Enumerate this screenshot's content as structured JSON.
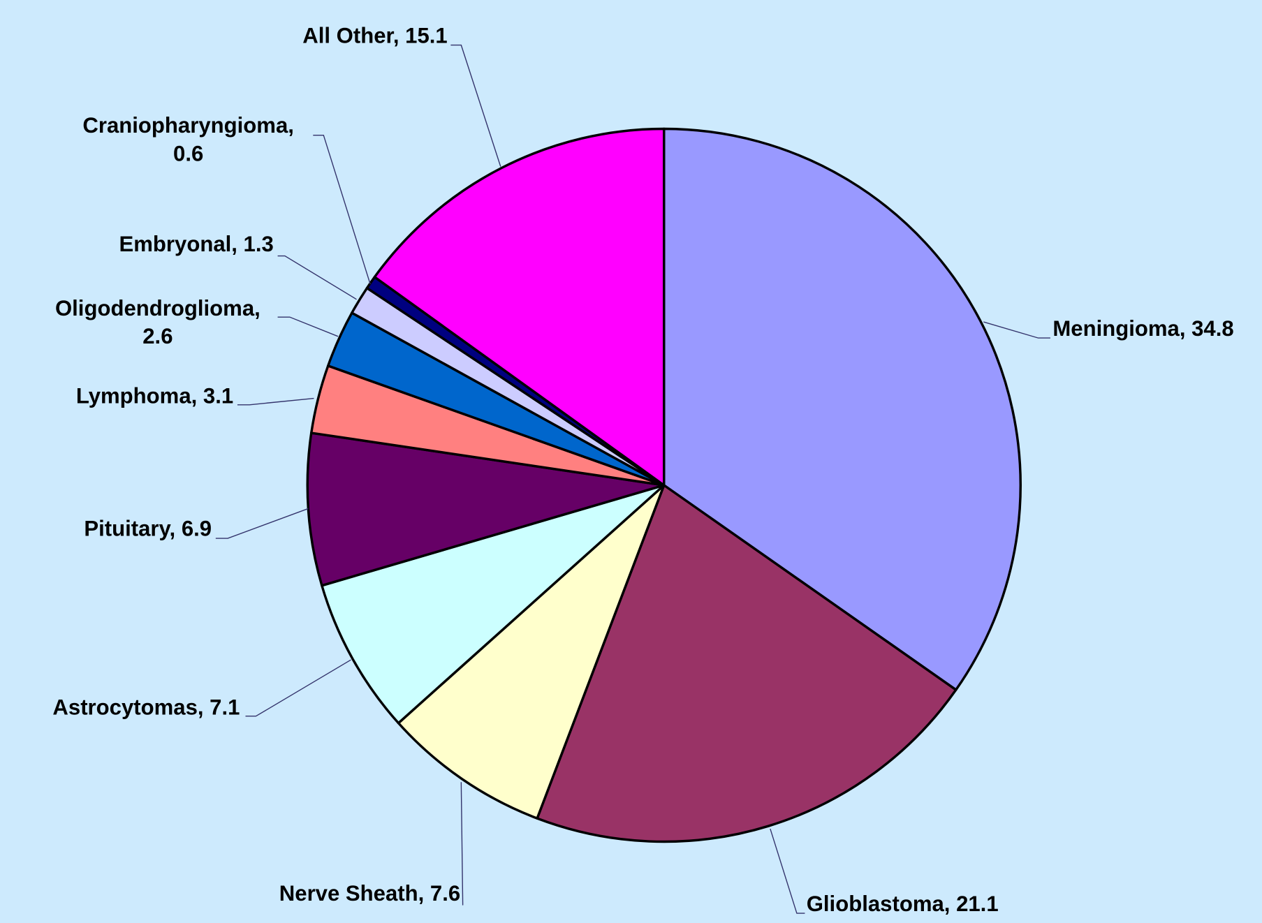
{
  "chart_data": {
    "type": "pie",
    "values": [
      34.8,
      21.1,
      7.6,
      7.1,
      6.9,
      3.1,
      2.6,
      1.3,
      0.6,
      15.1
    ],
    "value_labels": [
      "Meningioma, 34.8",
      "Glioblastoma, 21.1",
      "Nerve Sheath, 7.6",
      "Astrocytomas, 7.1",
      "Pituitary, 6.9",
      "Lymphoma, 3.1",
      "Oligodendroglioma,\n2.6",
      "Embryonal, 1.3",
      "Craniopharyngioma,\n0.6",
      "All Other, 15.1"
    ],
    "colors": [
      "#9999ff",
      "#993366",
      "#ffffcc",
      "#ccffff",
      "#660066",
      "#ff8080",
      "#0066cc",
      "#ccccff",
      "#000080",
      "#ff00ff"
    ]
  }
}
